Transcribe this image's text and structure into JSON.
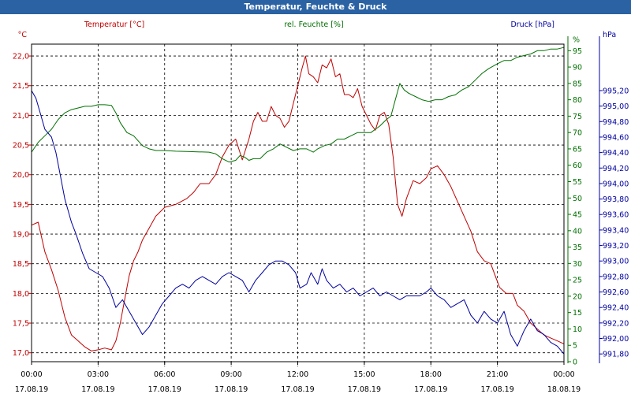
{
  "window": {
    "title": "Temperatur, Feuchte & Druck"
  },
  "colors": {
    "temperature": "#c00000",
    "humidity": "#007000",
    "pressure": "#0000a0",
    "grid": "#000000",
    "titlebar": "#2a62a3"
  },
  "chart_data": {
    "type": "line",
    "title": "Temperatur, Feuchte & Druck",
    "grid": true,
    "x_ticks": [
      {
        "time": "00:00",
        "date": "17.08.19"
      },
      {
        "time": "03:00",
        "date": "17.08.19"
      },
      {
        "time": "06:00",
        "date": "17.08.19"
      },
      {
        "time": "09:00",
        "date": "17.08.19"
      },
      {
        "time": "12:00",
        "date": "17.08.19"
      },
      {
        "time": "15:00",
        "date": "17.08.19"
      },
      {
        "time": "18:00",
        "date": "17.08.19"
      },
      {
        "time": "21:00",
        "date": "17.08.19"
      },
      {
        "time": "00:00",
        "date": "18.08.19"
      }
    ],
    "x_hours_range": [
      0,
      24
    ],
    "axes": {
      "temperature": {
        "label": "Temperatur [°C]",
        "unit": "°C",
        "range": [
          16.85,
          22.2
        ],
        "ticks": [
          "17,0",
          "17,5",
          "18,0",
          "18,5",
          "19,0",
          "19,5",
          "20,0",
          "20,5",
          "21,0",
          "21,5",
          "22,0"
        ],
        "tick_values": [
          17.0,
          17.5,
          18.0,
          18.5,
          19.0,
          19.5,
          20.0,
          20.5,
          21.0,
          21.5,
          22.0
        ]
      },
      "humidity": {
        "label": "rel. Feuchte [%]",
        "unit": "%",
        "range": [
          0,
          97
        ],
        "ticks": [
          "0",
          "5",
          "10",
          "15",
          "20",
          "25",
          "30",
          "35",
          "40",
          "45",
          "50",
          "55",
          "60",
          "65",
          "70",
          "75",
          "80",
          "85",
          "90",
          "95"
        ],
        "tick_values": [
          0,
          5,
          10,
          15,
          20,
          25,
          30,
          35,
          40,
          45,
          50,
          55,
          60,
          65,
          70,
          75,
          80,
          85,
          90,
          95
        ]
      },
      "pressure": {
        "label": "Druck [hPa]",
        "unit": "hPa",
        "range": [
          991.7,
          995.8
        ],
        "ticks": [
          "991,80",
          "992,00",
          "992,20",
          "992,40",
          "992,60",
          "992,80",
          "993,00",
          "993,20",
          "993,40",
          "993,60",
          "993,80",
          "994,00",
          "994,20",
          "994,40",
          "994,60",
          "994,80",
          "995,00",
          "995,20"
        ],
        "tick_values": [
          991.8,
          992.0,
          992.2,
          992.4,
          992.6,
          992.8,
          993.0,
          993.2,
          993.4,
          993.6,
          993.8,
          994.0,
          994.2,
          994.4,
          994.6,
          994.8,
          995.0,
          995.2
        ]
      }
    },
    "series": [
      {
        "name": "Temperatur [°C]",
        "axis": "temperature",
        "color": "#c00000",
        "points": [
          [
            0,
            19.15
          ],
          [
            0.3,
            19.2
          ],
          [
            0.6,
            18.7
          ],
          [
            0.9,
            18.4
          ],
          [
            1.2,
            18.05
          ],
          [
            1.5,
            17.6
          ],
          [
            1.8,
            17.3
          ],
          [
            2.1,
            17.2
          ],
          [
            2.4,
            17.1
          ],
          [
            2.7,
            17.03
          ],
          [
            3.0,
            17.05
          ],
          [
            3.3,
            17.08
          ],
          [
            3.6,
            17.05
          ],
          [
            3.8,
            17.2
          ],
          [
            4.0,
            17.5
          ],
          [
            4.2,
            17.9
          ],
          [
            4.4,
            18.3
          ],
          [
            4.6,
            18.55
          ],
          [
            4.8,
            18.7
          ],
          [
            5.0,
            18.9
          ],
          [
            5.3,
            19.1
          ],
          [
            5.6,
            19.3
          ],
          [
            6.0,
            19.45
          ],
          [
            6.5,
            19.5
          ],
          [
            7.0,
            19.6
          ],
          [
            7.3,
            19.7
          ],
          [
            7.6,
            19.85
          ],
          [
            8.0,
            19.85
          ],
          [
            8.3,
            20.0
          ],
          [
            8.6,
            20.3
          ],
          [
            8.9,
            20.5
          ],
          [
            9.2,
            20.6
          ],
          [
            9.5,
            20.25
          ],
          [
            9.8,
            20.6
          ],
          [
            10.0,
            20.9
          ],
          [
            10.2,
            21.05
          ],
          [
            10.4,
            20.9
          ],
          [
            10.6,
            20.9
          ],
          [
            10.8,
            21.15
          ],
          [
            11.0,
            21.0
          ],
          [
            11.2,
            20.95
          ],
          [
            11.4,
            20.8
          ],
          [
            11.6,
            20.9
          ],
          [
            11.8,
            21.2
          ],
          [
            12.0,
            21.5
          ],
          [
            12.2,
            21.8
          ],
          [
            12.35,
            22.0
          ],
          [
            12.5,
            21.7
          ],
          [
            12.7,
            21.65
          ],
          [
            12.9,
            21.55
          ],
          [
            13.1,
            21.85
          ],
          [
            13.3,
            21.8
          ],
          [
            13.5,
            21.95
          ],
          [
            13.7,
            21.65
          ],
          [
            13.9,
            21.7
          ],
          [
            14.1,
            21.35
          ],
          [
            14.3,
            21.35
          ],
          [
            14.5,
            21.3
          ],
          [
            14.7,
            21.45
          ],
          [
            14.9,
            21.15
          ],
          [
            15.1,
            21.0
          ],
          [
            15.3,
            20.85
          ],
          [
            15.5,
            20.75
          ],
          [
            15.7,
            21.0
          ],
          [
            15.9,
            21.05
          ],
          [
            16.1,
            20.85
          ],
          [
            16.3,
            20.3
          ],
          [
            16.5,
            19.5
          ],
          [
            16.7,
            19.3
          ],
          [
            16.9,
            19.6
          ],
          [
            17.2,
            19.9
          ],
          [
            17.5,
            19.85
          ],
          [
            17.8,
            19.95
          ],
          [
            18.0,
            20.1
          ],
          [
            18.3,
            20.15
          ],
          [
            18.6,
            20.0
          ],
          [
            18.9,
            19.8
          ],
          [
            19.2,
            19.55
          ],
          [
            19.5,
            19.3
          ],
          [
            19.8,
            19.05
          ],
          [
            20.1,
            18.7
          ],
          [
            20.4,
            18.55
          ],
          [
            20.7,
            18.5
          ],
          [
            20.9,
            18.3
          ],
          [
            21.1,
            18.1
          ],
          [
            21.4,
            18.0
          ],
          [
            21.7,
            18.0
          ],
          [
            21.9,
            17.8
          ],
          [
            22.2,
            17.7
          ],
          [
            22.5,
            17.5
          ],
          [
            22.8,
            17.4
          ],
          [
            23.1,
            17.3
          ],
          [
            23.4,
            17.25
          ],
          [
            23.7,
            17.2
          ],
          [
            24.0,
            17.15
          ]
        ]
      },
      {
        "name": "rel. Feuchte [%]",
        "axis": "humidity",
        "color": "#007000",
        "points": [
          [
            0,
            64
          ],
          [
            0.3,
            67
          ],
          [
            0.6,
            69
          ],
          [
            0.9,
            71
          ],
          [
            1.2,
            74
          ],
          [
            1.5,
            76
          ],
          [
            1.8,
            77
          ],
          [
            2.1,
            77.5
          ],
          [
            2.4,
            78
          ],
          [
            2.7,
            78
          ],
          [
            3.0,
            78.5
          ],
          [
            3.3,
            78.5
          ],
          [
            3.6,
            78.3
          ],
          [
            3.8,
            76
          ],
          [
            4.0,
            73
          ],
          [
            4.3,
            70
          ],
          [
            4.6,
            69
          ],
          [
            5.0,
            66
          ],
          [
            5.3,
            65
          ],
          [
            5.6,
            64.5
          ],
          [
            6.0,
            64.5
          ],
          [
            6.5,
            64.3
          ],
          [
            7.0,
            64.2
          ],
          [
            7.5,
            64.1
          ],
          [
            8.0,
            64
          ],
          [
            8.3,
            63.5
          ],
          [
            8.6,
            62
          ],
          [
            8.9,
            61
          ],
          [
            9.2,
            61.5
          ],
          [
            9.4,
            63
          ],
          [
            9.6,
            62.5
          ],
          [
            9.8,
            61.5
          ],
          [
            10.0,
            62
          ],
          [
            10.3,
            62
          ],
          [
            10.6,
            64
          ],
          [
            10.9,
            65
          ],
          [
            11.2,
            66.5
          ],
          [
            11.5,
            65.5
          ],
          [
            11.8,
            64.5
          ],
          [
            12.1,
            65
          ],
          [
            12.4,
            65
          ],
          [
            12.7,
            64
          ],
          [
            12.9,
            65
          ],
          [
            13.2,
            66
          ],
          [
            13.5,
            66.5
          ],
          [
            13.8,
            68
          ],
          [
            14.1,
            68
          ],
          [
            14.4,
            69
          ],
          [
            14.7,
            70
          ],
          [
            15.0,
            70
          ],
          [
            15.3,
            70
          ],
          [
            15.5,
            71
          ],
          [
            15.7,
            72
          ],
          [
            16.0,
            74
          ],
          [
            16.2,
            75
          ],
          [
            16.4,
            80
          ],
          [
            16.6,
            85
          ],
          [
            16.8,
            83
          ],
          [
            17.0,
            82
          ],
          [
            17.3,
            81
          ],
          [
            17.6,
            80
          ],
          [
            17.9,
            79.5
          ],
          [
            18.2,
            80
          ],
          [
            18.5,
            80
          ],
          [
            18.8,
            81
          ],
          [
            19.1,
            81.5
          ],
          [
            19.4,
            83
          ],
          [
            19.7,
            84
          ],
          [
            20.0,
            86
          ],
          [
            20.3,
            88
          ],
          [
            20.6,
            89.5
          ],
          [
            21.0,
            91
          ],
          [
            21.3,
            92
          ],
          [
            21.6,
            92
          ],
          [
            21.9,
            93
          ],
          [
            22.2,
            93.5
          ],
          [
            22.5,
            94
          ],
          [
            22.8,
            95
          ],
          [
            23.1,
            95
          ],
          [
            23.4,
            95.5
          ],
          [
            23.7,
            95.5
          ],
          [
            24.0,
            96
          ]
        ]
      },
      {
        "name": "Druck [hPa]",
        "axis": "pressure",
        "color": "#0000a0",
        "points": [
          [
            0,
            995.2
          ],
          [
            0.2,
            995.1
          ],
          [
            0.4,
            994.9
          ],
          [
            0.6,
            994.7
          ],
          [
            0.9,
            994.6
          ],
          [
            1.1,
            994.4
          ],
          [
            1.3,
            994.1
          ],
          [
            1.5,
            993.8
          ],
          [
            1.8,
            993.5
          ],
          [
            2.0,
            993.35
          ],
          [
            2.3,
            993.1
          ],
          [
            2.6,
            992.9
          ],
          [
            2.9,
            992.85
          ],
          [
            3.2,
            992.8
          ],
          [
            3.5,
            992.65
          ],
          [
            3.8,
            992.4
          ],
          [
            4.1,
            992.5
          ],
          [
            4.4,
            992.35
          ],
          [
            4.7,
            992.2
          ],
          [
            5.0,
            992.05
          ],
          [
            5.3,
            992.15
          ],
          [
            5.6,
            992.3
          ],
          [
            5.9,
            992.45
          ],
          [
            6.2,
            992.55
          ],
          [
            6.5,
            992.65
          ],
          [
            6.8,
            992.7
          ],
          [
            7.1,
            992.65
          ],
          [
            7.4,
            992.75
          ],
          [
            7.7,
            992.8
          ],
          [
            8.0,
            992.75
          ],
          [
            8.3,
            992.7
          ],
          [
            8.6,
            992.8
          ],
          [
            8.9,
            992.85
          ],
          [
            9.2,
            992.8
          ],
          [
            9.5,
            992.75
          ],
          [
            9.8,
            992.6
          ],
          [
            10.1,
            992.75
          ],
          [
            10.4,
            992.85
          ],
          [
            10.7,
            992.95
          ],
          [
            11.0,
            993.0
          ],
          [
            11.3,
            993.0
          ],
          [
            11.6,
            992.95
          ],
          [
            11.9,
            992.85
          ],
          [
            12.1,
            992.65
          ],
          [
            12.4,
            992.7
          ],
          [
            12.6,
            992.85
          ],
          [
            12.9,
            992.7
          ],
          [
            13.1,
            992.9
          ],
          [
            13.3,
            992.75
          ],
          [
            13.6,
            992.65
          ],
          [
            13.9,
            992.7
          ],
          [
            14.2,
            992.6
          ],
          [
            14.5,
            992.65
          ],
          [
            14.8,
            992.55
          ],
          [
            15.1,
            992.6
          ],
          [
            15.4,
            992.65
          ],
          [
            15.7,
            992.55
          ],
          [
            16.0,
            992.6
          ],
          [
            16.3,
            992.55
          ],
          [
            16.6,
            992.5
          ],
          [
            16.9,
            992.55
          ],
          [
            17.2,
            992.55
          ],
          [
            17.5,
            992.55
          ],
          [
            17.8,
            992.6
          ],
          [
            18.0,
            992.65
          ],
          [
            18.3,
            992.55
          ],
          [
            18.6,
            992.5
          ],
          [
            18.9,
            992.4
          ],
          [
            19.2,
            992.45
          ],
          [
            19.5,
            992.5
          ],
          [
            19.8,
            992.3
          ],
          [
            20.1,
            992.2
          ],
          [
            20.4,
            992.35
          ],
          [
            20.7,
            992.25
          ],
          [
            21.0,
            992.2
          ],
          [
            21.3,
            992.35
          ],
          [
            21.6,
            992.05
          ],
          [
            21.9,
            991.9
          ],
          [
            22.2,
            992.1
          ],
          [
            22.5,
            992.25
          ],
          [
            22.8,
            992.1
          ],
          [
            23.1,
            992.05
          ],
          [
            23.4,
            991.95
          ],
          [
            23.7,
            991.9
          ],
          [
            24.0,
            991.8
          ]
        ]
      }
    ]
  }
}
